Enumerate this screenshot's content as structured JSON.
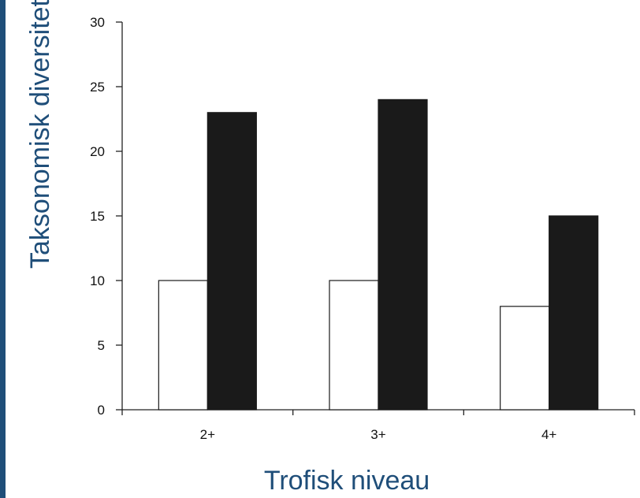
{
  "chart_data": {
    "type": "bar",
    "categories": [
      "2+",
      "3+",
      "4+"
    ],
    "series": [
      {
        "values": [
          10,
          10,
          8
        ],
        "color": "#ffffff"
      },
      {
        "values": [
          23,
          24,
          15
        ],
        "color": "#1a1a1a"
      }
    ],
    "xlabel": "Trofisk niveau",
    "ylabel": "Taksonomisk diversitet",
    "ylim": [
      0,
      30
    ],
    "yticks": [
      0,
      5,
      10,
      15,
      20,
      25,
      30
    ],
    "grid": false,
    "legend": "none"
  },
  "colors": {
    "accent": "#1f4e79",
    "axis": "#222222"
  }
}
